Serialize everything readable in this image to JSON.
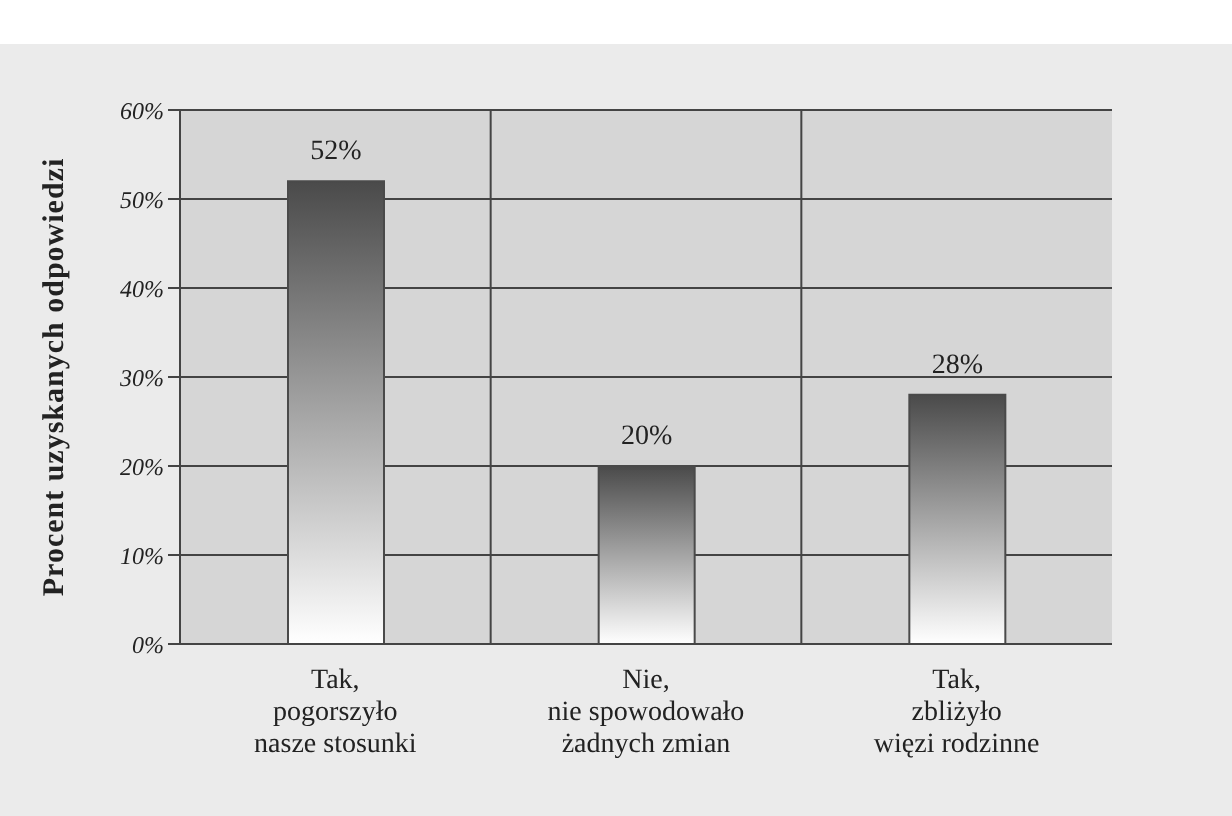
{
  "chart_data": {
    "type": "bar",
    "ylabel": "Procent uzyskanych odpowiedzi",
    "categories": [
      "Tak,\npogorszyło\nnasze stosunki",
      "Nie,\nnie spowodowało\nżadnych zmian",
      "Tak,\nzbliżyło\nwięzi rodzinne"
    ],
    "values": [
      52,
      20,
      28
    ],
    "value_labels": [
      "52%",
      "20%",
      "28%"
    ],
    "color": "#4a4a4a",
    "ylim": [
      0,
      60
    ],
    "yticks": [
      {
        "value": 0,
        "label": "0%"
      },
      {
        "value": 10,
        "label": "10%"
      },
      {
        "value": 20,
        "label": "20%"
      },
      {
        "value": 30,
        "label": "30%"
      },
      {
        "value": 40,
        "label": "40%"
      },
      {
        "value": 50,
        "label": "50%"
      },
      {
        "value": 60,
        "label": "60%"
      }
    ],
    "grid": true
  }
}
